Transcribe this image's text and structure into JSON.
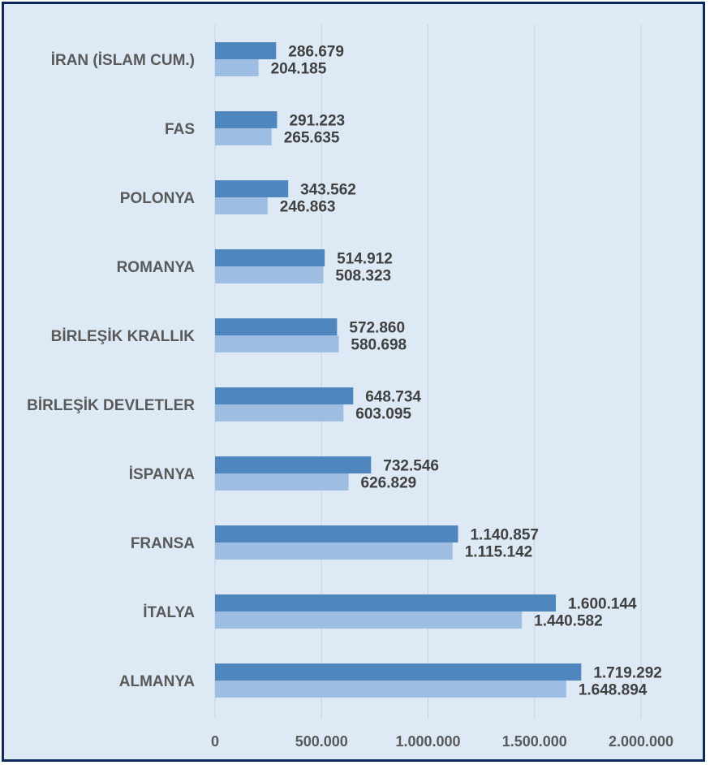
{
  "chart_data": {
    "type": "bar",
    "orientation": "horizontal",
    "categories": [
      "ALMANYA",
      "İTALYA",
      "FRANSA",
      "İSPANYA",
      "BİRLEŞİK DEVLETLER",
      "BİRLEŞİK KRALLIK",
      "ROMANYA",
      "POLONYA",
      "FAS",
      "İRAN (İSLAM CUM.)"
    ],
    "series": [
      {
        "color": "#4f86be",
        "values": [
          1719292,
          1600144,
          1140857,
          732546,
          648734,
          572860,
          514912,
          343562,
          291223,
          286679
        ],
        "labels": [
          "1.719.292",
          "1.600.144",
          "1.140.857",
          "732.546",
          "648.734",
          "572.860",
          "514.912",
          "343.562",
          "291.223",
          "286.679"
        ]
      },
      {
        "color": "#9dbde3",
        "values": [
          1648894,
          1440582,
          1115142,
          626829,
          603095,
          580698,
          508323,
          246863,
          265635,
          204185
        ],
        "labels": [
          "1.648.894",
          "1.440.582",
          "1.115.142",
          "626.829",
          "603.095",
          "580.698",
          "508.323",
          "246.863",
          "265.635",
          "204.185"
        ]
      }
    ],
    "x_ticks": [
      0,
      500000,
      1000000,
      1500000,
      2000000
    ],
    "x_tick_labels": [
      "0",
      "500.000",
      "1.000.000",
      "1.500.000",
      "2.000.000"
    ],
    "xlim": [
      0,
      2000000
    ],
    "title": "",
    "xlabel": "",
    "ylabel": "",
    "grid": true,
    "legend": "none"
  }
}
